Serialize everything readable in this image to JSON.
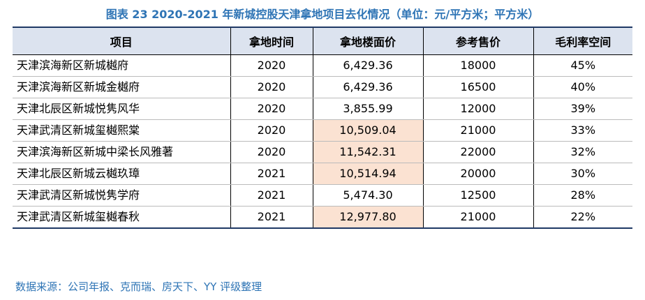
{
  "title": "图表 23 2020-2021 年新城控股天津拿地项目去化情况（单位：元/平方米；平方米）",
  "table": {
    "header": [
      "项目",
      "拿地时间",
      "拿地楼面价",
      "参考售价",
      "毛利率空间"
    ],
    "rows": [
      [
        "天津滨海新区新城樾府",
        "2020",
        "6,429.36",
        "18000",
        "45%"
      ],
      [
        "天津滨海新区新城金樾府",
        "2020",
        "6,429.36",
        "16500",
        "40%"
      ],
      [
        "天津北辰区新城悦隽风华",
        "2020",
        "3,855.99",
        "12000",
        "39%"
      ],
      [
        "天津武清区新城玺樾熙棠",
        "2020",
        "10,509.04",
        "21000",
        "33%"
      ],
      [
        "天津滨海新区新城中梁长风雅著",
        "2020",
        "11,542.31",
        "22000",
        "32%"
      ],
      [
        "天津北辰区新城云樾玖璋",
        "2021",
        "10,514.94",
        "20000",
        "30%"
      ],
      [
        "天津武清区新城悦隽学府",
        "2021",
        "5,474.30",
        "12500",
        "28%"
      ],
      [
        "天津武清区新城玺樾春秋",
        "2021",
        "12,977.80",
        "21000",
        "22%"
      ]
    ]
  },
  "source": "数据来源：公司年报、克而瑞、房天下、YY 评级整理"
}
